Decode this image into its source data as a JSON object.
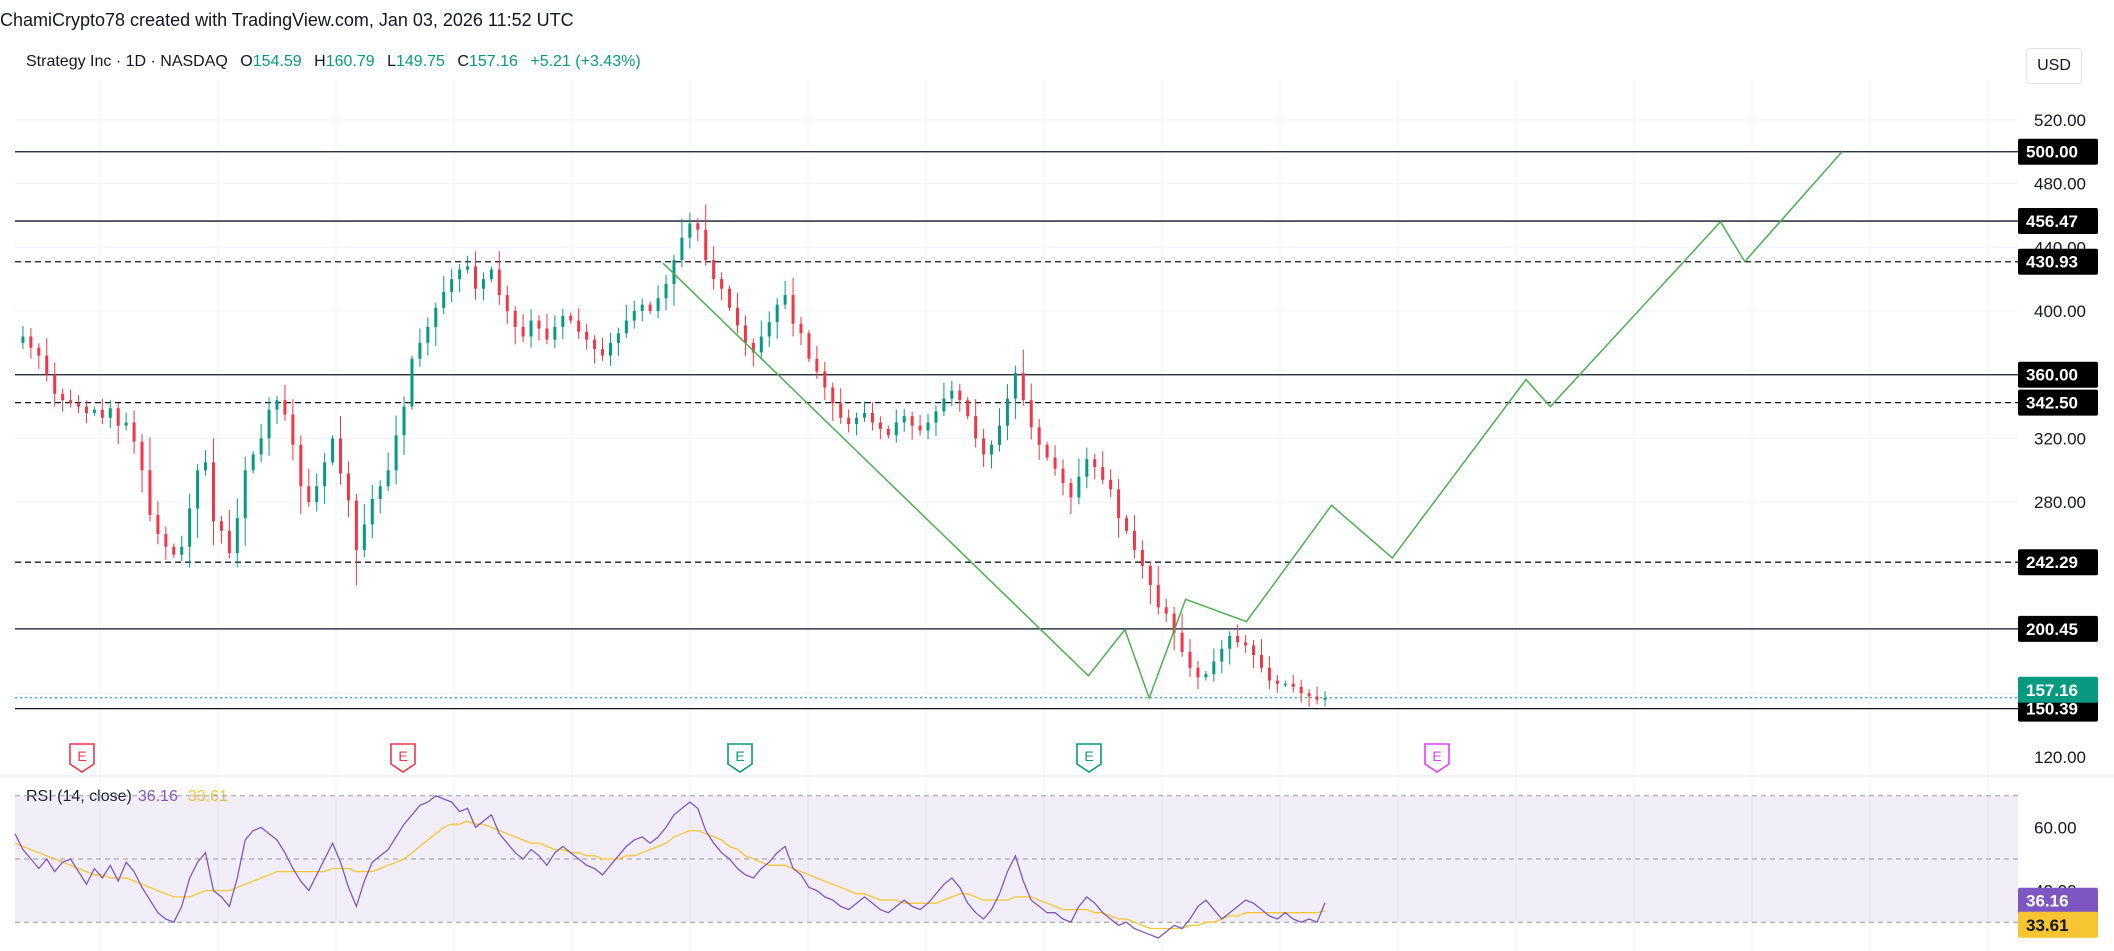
{
  "header": {
    "text": "ChamiCrypto78 created with TradingView.com, Jan 03, 2026 11:52 UTC"
  },
  "legend": {
    "symbol": "Strategy Inc · 1D · NASDAQ",
    "open_label": "O",
    "open": "154.59",
    "high_label": "H",
    "high": "160.79",
    "low_label": "L",
    "low": "149.75",
    "close_label": "C",
    "close": "157.16",
    "change": "+5.21 (+3.43%)"
  },
  "currency_button": "USD",
  "colors": {
    "up": "#089981",
    "down": "#f23645",
    "projection": "#4caf50",
    "rsi": "#7e57c2",
    "rsi_ma": "#f7c531",
    "earnings": "#f23645",
    "earnings_green": "#089981",
    "earnings_pink": "#e040fb"
  },
  "rsi_legend": {
    "label": "RSI (14, close)",
    "rsi": "36.16",
    "ma": "33.61"
  },
  "earnings_markers": [
    "E",
    "E",
    "E",
    "E",
    "E"
  ],
  "chart_data": {
    "type": "candlestick",
    "y_ticks": [
      "520.00",
      "480.00",
      "440.00",
      "400.00",
      "320.00",
      "280.00",
      "120.00"
    ],
    "ylim": [
      120,
      540
    ],
    "levels": [
      {
        "label": "500.00",
        "value": 500.0,
        "style": "solid"
      },
      {
        "label": "456.47",
        "value": 456.47,
        "style": "solid"
      },
      {
        "label": "430.93",
        "value": 430.93,
        "style": "dashed"
      },
      {
        "label": "360.00",
        "value": 360.0,
        "style": "solid"
      },
      {
        "label": "342.50",
        "value": 342.5,
        "style": "dashed"
      },
      {
        "label": "242.29",
        "value": 242.29,
        "style": "dashed"
      },
      {
        "label": "200.45",
        "value": 200.45,
        "style": "solid"
      },
      {
        "label": "150.39",
        "value": 150.39,
        "style": "solid"
      }
    ],
    "last_price": {
      "label": "157.16",
      "value": 157.16
    },
    "price_path": [
      380,
      384,
      377,
      372,
      360,
      348,
      344,
      342,
      340,
      336,
      338,
      333,
      339,
      328,
      330,
      318,
      300,
      272,
      260,
      252,
      247,
      252,
      276,
      300,
      305,
      268,
      262,
      248,
      270,
      300,
      310,
      320,
      338,
      344,
      335,
      316,
      290,
      280,
      290,
      305,
      320,
      298,
      281,
      250,
      266,
      282,
      290,
      300,
      322,
      340,
      370,
      380,
      390,
      402,
      412,
      420,
      426,
      428,
      414,
      420,
      426,
      410,
      400,
      390,
      384,
      394,
      389,
      382,
      390,
      397,
      394,
      387,
      382,
      376,
      372,
      380,
      386,
      394,
      400,
      404,
      400,
      408,
      417,
      432,
      446,
      455,
      451,
      432,
      420,
      414,
      402,
      391,
      380,
      374,
      384,
      393,
      404,
      410,
      392,
      386,
      370,
      362,
      352,
      342,
      333,
      329,
      333,
      336,
      330,
      326,
      322,
      330,
      334,
      328,
      325,
      330,
      337,
      345,
      350,
      344,
      334,
      320,
      310,
      316,
      328,
      345,
      361,
      344,
      327,
      316,
      308,
      301,
      292,
      283,
      296,
      307,
      302,
      294,
      288,
      270,
      262,
      250,
      240,
      228,
      214,
      210,
      198,
      186,
      176,
      170,
      172,
      180,
      188,
      196,
      192,
      190,
      184,
      176,
      168,
      166,
      166,
      164,
      160,
      158,
      156,
      157
    ],
    "projection": [
      [
        0,
        430
      ],
      [
        35,
        171
      ],
      [
        38,
        200
      ],
      [
        40,
        157
      ],
      [
        43,
        219
      ],
      [
        48,
        205
      ],
      [
        55,
        278
      ],
      [
        60,
        245
      ],
      [
        71,
        357
      ],
      [
        73,
        340
      ],
      [
        87,
        456
      ],
      [
        89,
        431
      ],
      [
        97,
        500
      ]
    ],
    "rsi": {
      "ylim": [
        25,
        75
      ],
      "ticks": [
        "60.00",
        "40.00"
      ],
      "band": [
        30,
        70
      ],
      "mid": 50,
      "rsi_last_label": "36.16",
      "ma_last_label": "33.61",
      "values": [
        58,
        53,
        50,
        47,
        50,
        46,
        49,
        50,
        46,
        42,
        47,
        44,
        48,
        43,
        49,
        46,
        41,
        37,
        33,
        31,
        30,
        35,
        44,
        49,
        52,
        40,
        38,
        35,
        44,
        56,
        59,
        60,
        58,
        56,
        52,
        47,
        43,
        40,
        45,
        50,
        55,
        49,
        41,
        35,
        43,
        49,
        51,
        53,
        57,
        61,
        64,
        67,
        68,
        70,
        69,
        68,
        65,
        66,
        60,
        62,
        64,
        58,
        55,
        52,
        50,
        53,
        51,
        48,
        52,
        54,
        52,
        50,
        48,
        47,
        45,
        48,
        51,
        54,
        56,
        57,
        55,
        57,
        60,
        64,
        66,
        68,
        66,
        59,
        55,
        52,
        50,
        47,
        45,
        44,
        47,
        49,
        52,
        54,
        47,
        45,
        41,
        40,
        38,
        37,
        35,
        34,
        36,
        38,
        36,
        34,
        33,
        35,
        37,
        35,
        34,
        36,
        39,
        42,
        44,
        41,
        36,
        33,
        31,
        34,
        39,
        46,
        51,
        43,
        37,
        35,
        33,
        33,
        31,
        30,
        35,
        38,
        36,
        33,
        31,
        29,
        30,
        28,
        27,
        26,
        25,
        27,
        29,
        28,
        31,
        35,
        37,
        34,
        31,
        33,
        35,
        37,
        36,
        34,
        32,
        31,
        33,
        31,
        30,
        31,
        30,
        36.16
      ],
      "ma": [
        55,
        54,
        53,
        52,
        51,
        50,
        49,
        48,
        47,
        46,
        45,
        45,
        44,
        44,
        44,
        43,
        42,
        41,
        40,
        39,
        38,
        38,
        38,
        39,
        40,
        40,
        40,
        40,
        41,
        42,
        43,
        44,
        45,
        46,
        46,
        46,
        46,
        46,
        46,
        46,
        47,
        47,
        47,
        46,
        46,
        46,
        47,
        48,
        49,
        50,
        52,
        54,
        56,
        58,
        60,
        61,
        61,
        62,
        61,
        61,
        60,
        59,
        58,
        57,
        56,
        55,
        55,
        54,
        53,
        53,
        52,
        52,
        51,
        51,
        50,
        50,
        50,
        51,
        51,
        52,
        53,
        54,
        55,
        57,
        58,
        59,
        59,
        58,
        57,
        56,
        54,
        53,
        51,
        50,
        49,
        48,
        48,
        48,
        47,
        46,
        45,
        44,
        43,
        42,
        41,
        40,
        39,
        39,
        38,
        37,
        37,
        37,
        36,
        36,
        36,
        36,
        36,
        37,
        38,
        39,
        39,
        38,
        37,
        37,
        37,
        37,
        38,
        38,
        38,
        37,
        36,
        35,
        34,
        34,
        34,
        34,
        33,
        33,
        32,
        31,
        31,
        30,
        29,
        28,
        28,
        28,
        28,
        28,
        29,
        29,
        30,
        30,
        31,
        32,
        32,
        33,
        33,
        33,
        33,
        33,
        33,
        33,
        33,
        33,
        33,
        33.61
      ]
    }
  }
}
